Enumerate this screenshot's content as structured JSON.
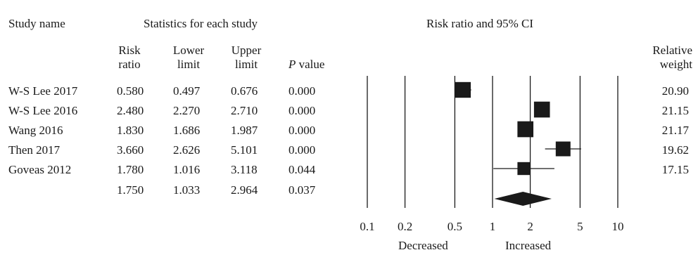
{
  "headers": {
    "study_name": "Study name",
    "statistics": "Statistics for each study",
    "plot_title": "Risk ratio and 95% CI",
    "col_rr_1": "Risk",
    "col_rr_2": "ratio",
    "col_lower_1": "Lower",
    "col_lower_2": "limit",
    "col_upper_1": "Upper",
    "col_upper_2": "limit",
    "col_p_italic": "P",
    "col_p_rest": " value",
    "col_weight_1": "Relative",
    "col_weight_2": "weight"
  },
  "axis_labels": {
    "left": "Decreased",
    "right": "Increased"
  },
  "chart_data": {
    "type": "forest",
    "scale": "log",
    "xlim": [
      0.1,
      10
    ],
    "ticks": [
      {
        "value": 0.1,
        "label": "0.1"
      },
      {
        "value": 0.2,
        "label": "0.2"
      },
      {
        "value": 0.5,
        "label": "0.5"
      },
      {
        "value": 1,
        "label": "1"
      },
      {
        "value": 2,
        "label": "2"
      },
      {
        "value": 5,
        "label": "5"
      },
      {
        "value": 10,
        "label": "10"
      }
    ],
    "studies": [
      {
        "name": "W-S Lee 2017",
        "rr": "0.580",
        "lower": "0.497",
        "upper": "0.676",
        "p": "0.000",
        "weight": "20.90"
      },
      {
        "name": "W-S Lee 2016",
        "rr": "2.480",
        "lower": "2.270",
        "upper": "2.710",
        "p": "0.000",
        "weight": "21.15"
      },
      {
        "name": "Wang 2016",
        "rr": "1.830",
        "lower": "1.686",
        "upper": "1.987",
        "p": "0.000",
        "weight": "21.17"
      },
      {
        "name": "Then 2017",
        "rr": "3.660",
        "lower": "2.626",
        "upper": "5.101",
        "p": "0.000",
        "weight": "19.62"
      },
      {
        "name": "Goveas 2012",
        "rr": "1.780",
        "lower": "1.016",
        "upper": "3.118",
        "p": "0.044",
        "weight": "17.15"
      }
    ],
    "pooled": {
      "rr": "1.750",
      "lower": "1.033",
      "upper": "2.964",
      "p": "0.037"
    }
  }
}
